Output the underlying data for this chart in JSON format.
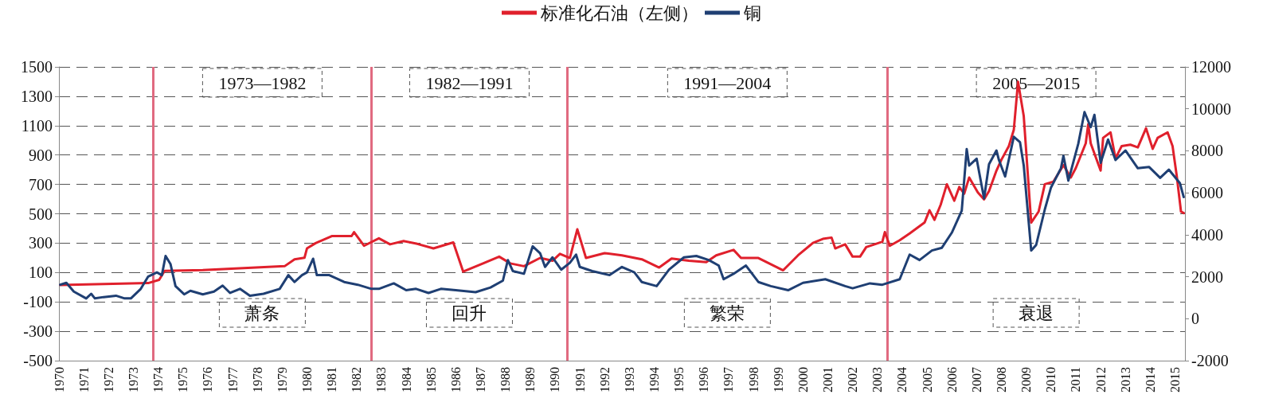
{
  "chart_data": {
    "type": "line",
    "legend": "top",
    "grid": "y",
    "marker": "none",
    "line_style": "solid",
    "xlim": [
      1970,
      2015.4
    ],
    "xticks": [
      1970,
      1971,
      1972,
      1973,
      1974,
      1975,
      1976,
      1977,
      1978,
      1979,
      1980,
      1981,
      1982,
      1983,
      1984,
      1985,
      1986,
      1987,
      1988,
      1989,
      1990,
      1991,
      1992,
      1993,
      1994,
      1995,
      1996,
      1997,
      1998,
      1999,
      2000,
      2001,
      2002,
      2003,
      2004,
      2005,
      2006,
      2007,
      2008,
      2009,
      2010,
      2011,
      2012,
      2013,
      2014,
      2015
    ],
    "ylim": [
      -500,
      1500
    ],
    "yticks": [
      -500,
      -300,
      -100,
      100,
      300,
      500,
      700,
      900,
      1100,
      1300,
      1500
    ],
    "y2lim": [
      -2000,
      12000
    ],
    "y2ticks": [
      -2000,
      0,
      2000,
      4000,
      6000,
      8000,
      10000,
      12000
    ],
    "series": [
      {
        "name": "标准化石油（左侧）",
        "color": "#e0202c",
        "x": [
          1970.05,
          1973.6,
          1974.04,
          1974.26,
          1975.8,
          1979.1,
          1979.5,
          1979.9,
          1980.0,
          1980.35,
          1981.0,
          1981.8,
          1981.9,
          1982.3,
          1982.9,
          1983.35,
          1983.9,
          1984.45,
          1985.1,
          1985.9,
          1986.3,
          1987.1,
          1987.75,
          1988.2,
          1988.75,
          1989.4,
          1989.9,
          1990.2,
          1990.6,
          1990.9,
          1991.25,
          1992.0,
          1992.7,
          1993.5,
          1994.2,
          1994.7,
          1995.4,
          1996.1,
          1996.5,
          1997.2,
          1997.5,
          1998.2,
          1999.2,
          1999.8,
          2000.4,
          2000.8,
          2001.15,
          2001.3,
          2001.7,
          2002.0,
          2002.3,
          2002.55,
          2003.2,
          2003.3,
          2003.5,
          2003.9,
          2004.3,
          2004.9,
          2005.1,
          2005.3,
          2005.55,
          2005.8,
          2006.1,
          2006.3,
          2006.5,
          2006.7,
          2007.05,
          2007.3,
          2007.5,
          2007.8,
          2008.0,
          2008.3,
          2008.5,
          2008.67,
          2008.9,
          2009.2,
          2009.5,
          2009.75,
          2010.1,
          2010.5,
          2010.8,
          2011.0,
          2011.4,
          2011.5,
          2011.6,
          2012.0,
          2012.1,
          2012.4,
          2012.6,
          2012.85,
          2013.2,
          2013.5,
          2013.83,
          2014.1,
          2014.3,
          2014.7,
          2014.9,
          2015.07,
          2015.24,
          2015.35
        ],
        "values": [
          15,
          28,
          50,
          111,
          117,
          143,
          190,
          200,
          264,
          300,
          348,
          348,
          375,
          282,
          333,
          292,
          314,
          295,
          264,
          305,
          106,
          162,
          208,
          162,
          143,
          199,
          180,
          227,
          199,
          394,
          199,
          232,
          217,
          190,
          134,
          195,
          180,
          171,
          217,
          254,
          199,
          199,
          115,
          217,
          301,
          329,
          338,
          264,
          292,
          208,
          208,
          273,
          310,
          375,
          282,
          320,
          366,
          440,
          524,
          459,
          561,
          701,
          589,
          682,
          636,
          747,
          645,
          598,
          654,
          794,
          868,
          961,
          1072,
          1398,
          1165,
          440,
          515,
          701,
          719,
          831,
          747,
          812,
          980,
          1110,
          980,
          794,
          1017,
          1054,
          877,
          961,
          970,
          952,
          1082,
          942,
          1017,
          1054,
          961,
          756,
          515,
          505
        ]
      },
      {
        "name": "铜",
        "color": "#1f3f73",
        "axis": "y2",
        "x": [
          1970.05,
          1970.3,
          1970.6,
          1971.1,
          1971.3,
          1971.45,
          1971.8,
          1972.3,
          1972.65,
          1972.9,
          1973.3,
          1973.6,
          1973.95,
          1974.15,
          1974.3,
          1974.5,
          1974.7,
          1975.05,
          1975.3,
          1975.8,
          1976.25,
          1976.6,
          1976.9,
          1977.3,
          1977.7,
          1978.25,
          1978.9,
          1979.25,
          1979.5,
          1979.8,
          1980.0,
          1980.25,
          1980.4,
          1980.9,
          1981.5,
          1982.05,
          1982.6,
          1982.9,
          1983.5,
          1984.0,
          1984.4,
          1984.9,
          1985.4,
          1986.0,
          1986.8,
          1987.4,
          1987.9,
          1988.1,
          1988.3,
          1988.75,
          1989.1,
          1989.4,
          1989.6,
          1989.9,
          1990.25,
          1990.6,
          1990.85,
          1991.0,
          1991.5,
          1992.2,
          1992.7,
          1993.2,
          1993.5,
          1994.1,
          1994.6,
          1995.2,
          1995.7,
          1996.2,
          1996.6,
          1996.8,
          1997.2,
          1997.7,
          1998.2,
          1998.7,
          1999.4,
          2000.0,
          2000.9,
          2001.7,
          2002.0,
          2002.7,
          2003.2,
          2003.9,
          2004.3,
          2004.7,
          2005.2,
          2005.6,
          2006.0,
          2006.4,
          2006.6,
          2006.7,
          2007.0,
          2007.3,
          2007.5,
          2007.8,
          2007.9,
          2008.15,
          2008.5,
          2008.75,
          2008.9,
          2009.2,
          2009.4,
          2009.75,
          2010.0,
          2010.4,
          2010.5,
          2010.7,
          2011.1,
          2011.35,
          2011.6,
          2011.75,
          2012.0,
          2012.3,
          2012.6,
          2013.0,
          2013.5,
          2013.95,
          2014.4,
          2014.75,
          2015.2,
          2015.35
        ],
        "values": [
          1617,
          1709,
          1291,
          965,
          1187,
          965,
          1030,
          1095,
          965,
          965,
          1421,
          2009,
          2205,
          2074,
          2989,
          2597,
          1552,
          1160,
          1330,
          1160,
          1291,
          1578,
          1226,
          1421,
          1095,
          1187,
          1421,
          2074,
          1748,
          2074,
          2205,
          2858,
          2074,
          2074,
          1748,
          1617,
          1421,
          1421,
          1683,
          1356,
          1421,
          1226,
          1421,
          1356,
          1265,
          1487,
          1813,
          2793,
          2270,
          2140,
          3446,
          3119,
          2466,
          2923,
          2336,
          2662,
          3054,
          2466,
          2270,
          2074,
          2466,
          2205,
          1748,
          1552,
          2336,
          2923,
          2989,
          2793,
          2532,
          1879,
          2140,
          2532,
          1748,
          1552,
          1356,
          1709,
          1879,
          1552,
          1448,
          1683,
          1617,
          1879,
          3054,
          2793,
          3250,
          3380,
          4098,
          5143,
          8082,
          7298,
          7625,
          5731,
          7364,
          8017,
          7560,
          6776,
          8670,
          8409,
          7298,
          3250,
          3511,
          5208,
          6254,
          7168,
          7756,
          6580,
          8343,
          9845,
          9127,
          9715,
          7429,
          8539,
          7560,
          8017,
          7168,
          7233,
          6711,
          7103,
          6450,
          5796
        ]
      }
    ],
    "ref_lines": [
      {
        "axis": "x",
        "value": 1973.8,
        "color": "#e06a80"
      },
      {
        "axis": "x",
        "value": 1982.6,
        "color": "#e06a80"
      },
      {
        "axis": "x",
        "value": 1990.5,
        "color": "#e06a80"
      },
      {
        "axis": "x",
        "value": 2003.4,
        "color": "#e06a80"
      }
    ],
    "annotations": [
      "1973—1982",
      "1982—1991",
      "1991—2004",
      "2005—2015",
      "萧条",
      "回升",
      "繁荣",
      "衰退"
    ]
  }
}
